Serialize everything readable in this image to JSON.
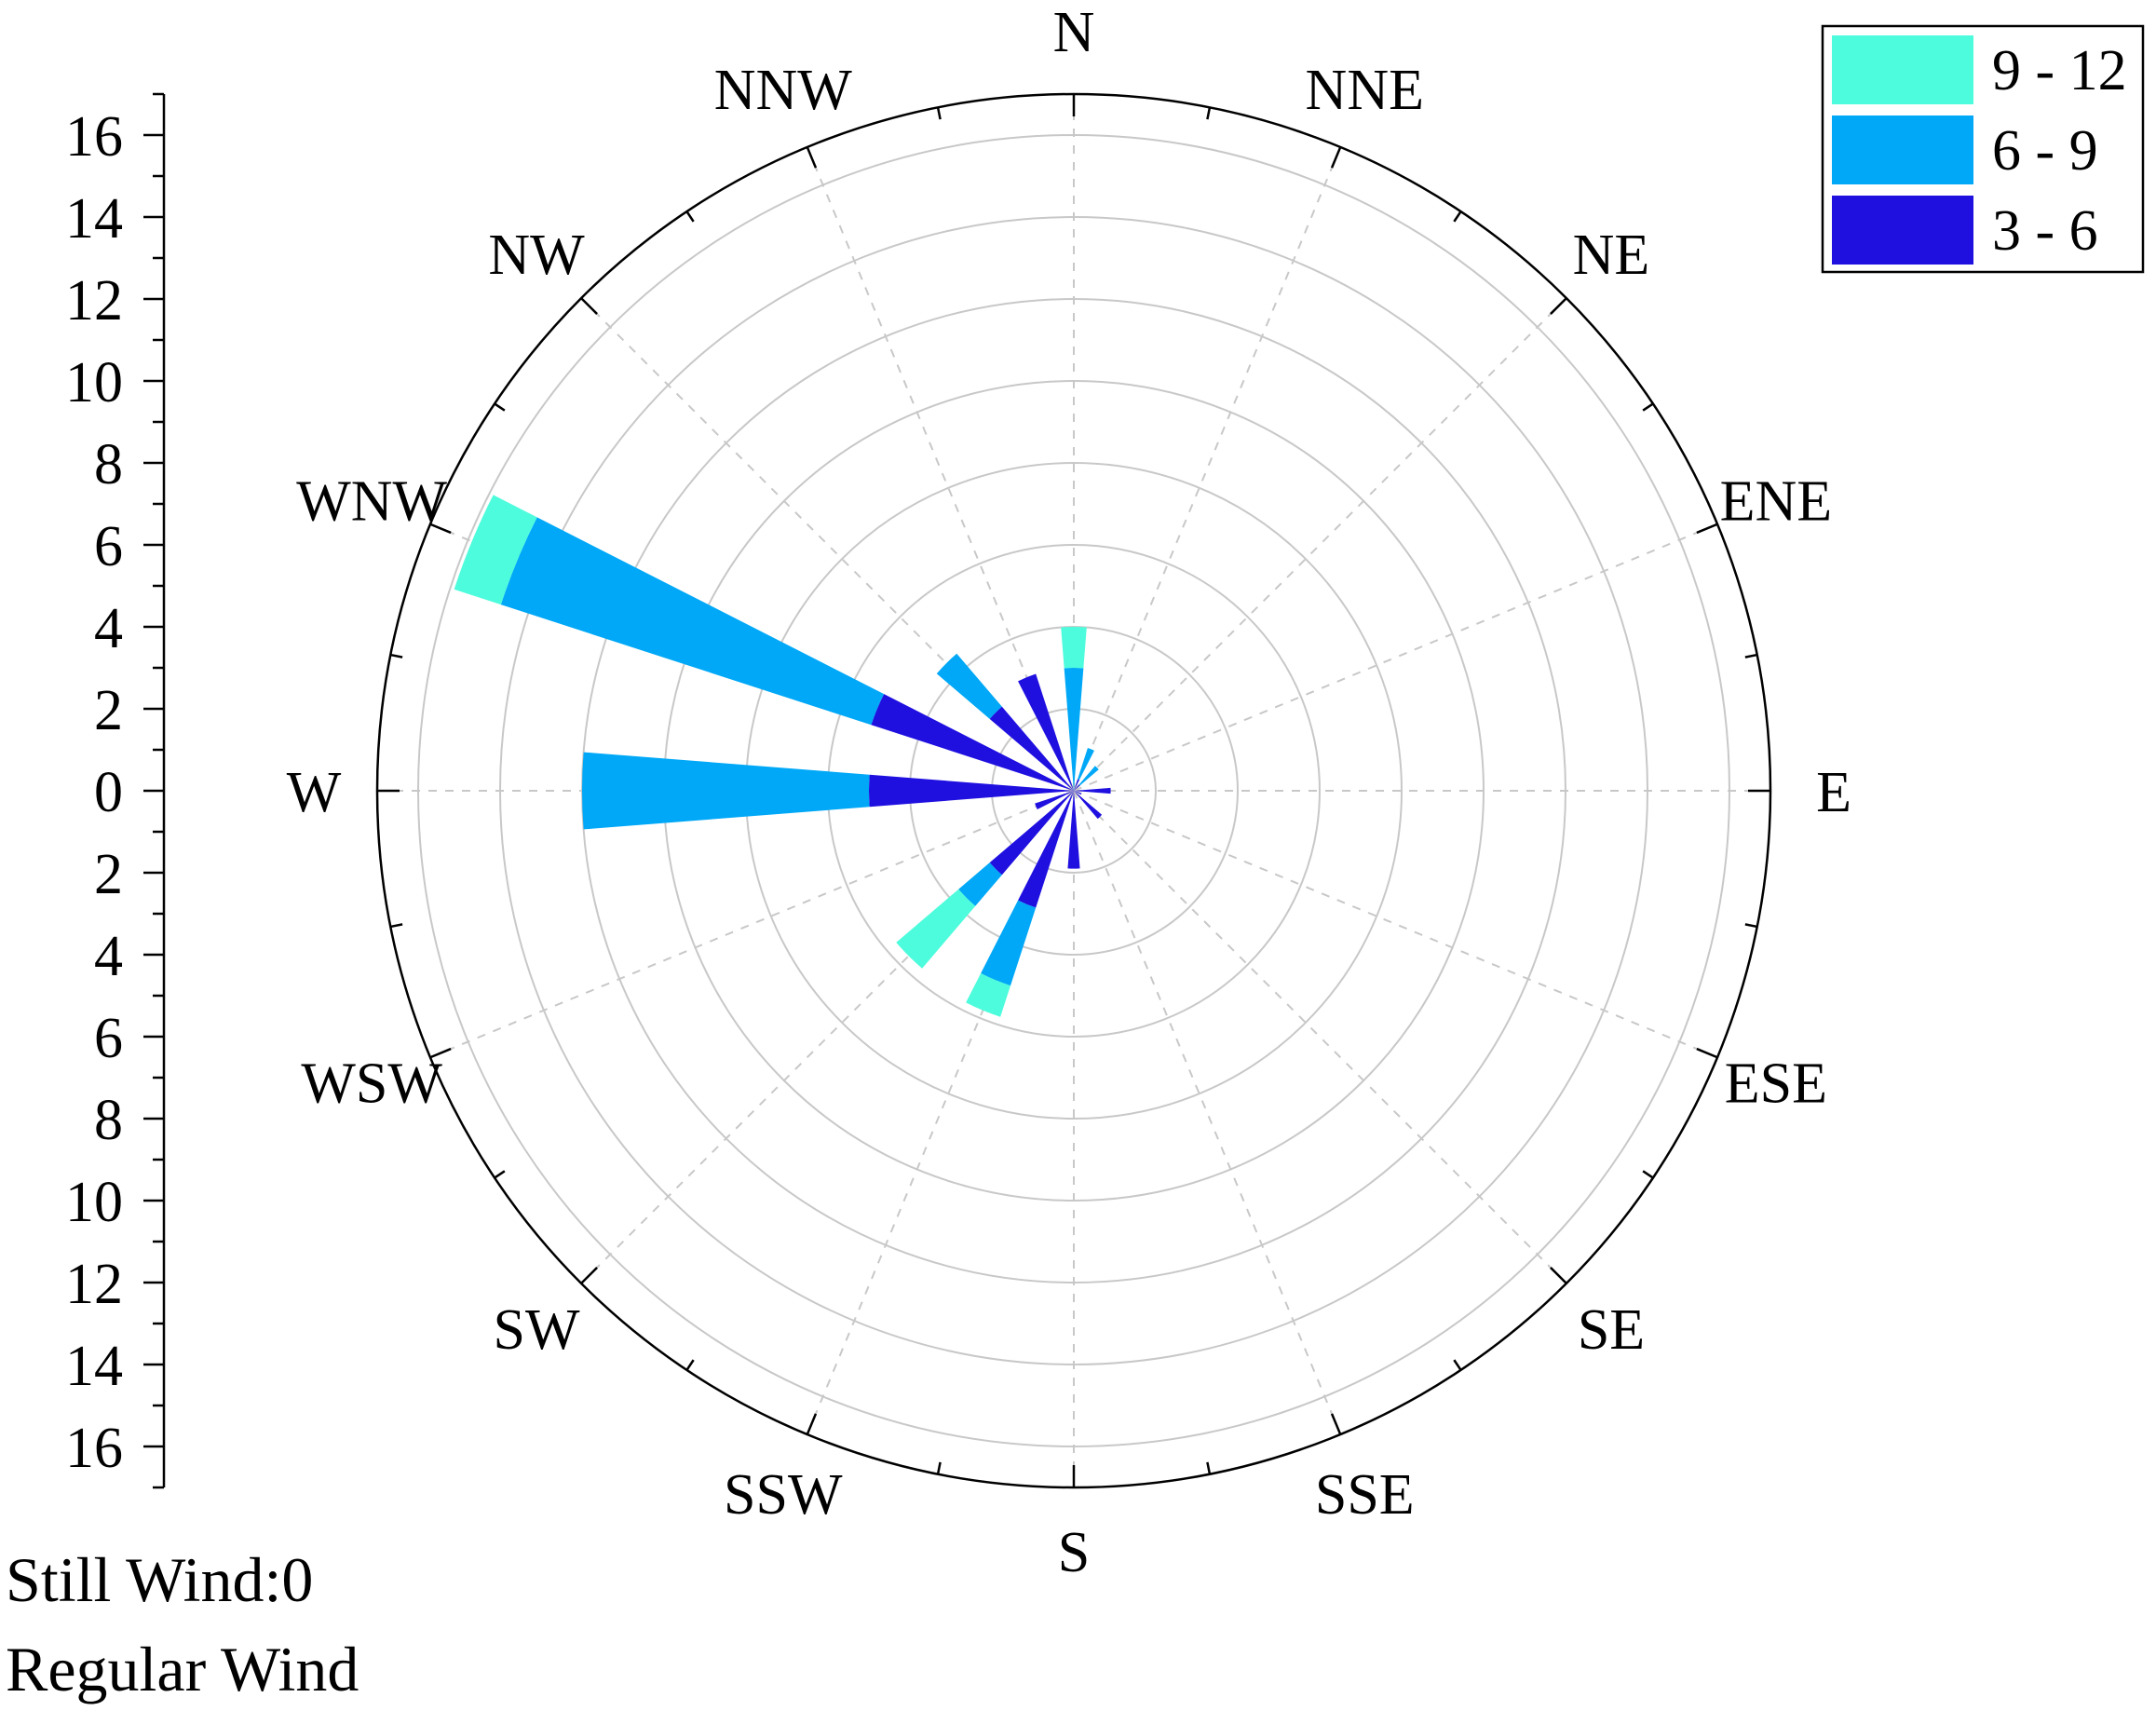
{
  "chart_data": {
    "type": "wind-rose",
    "directions": [
      "N",
      "NNE",
      "NE",
      "ENE",
      "E",
      "ESE",
      "SE",
      "SSE",
      "S",
      "SSW",
      "SW",
      "WSW",
      "W",
      "WNW",
      "NW",
      "NNW"
    ],
    "radial_axis": {
      "range": [
        0,
        17
      ],
      "ticks": [
        16,
        14,
        12,
        10,
        8,
        6,
        4,
        2,
        0,
        2,
        4,
        6,
        8,
        10,
        12,
        14,
        16
      ]
    },
    "grid": true,
    "legend": {
      "position": "top-right",
      "order": [
        "9 - 12",
        "6 - 9",
        "3 - 6"
      ]
    },
    "series": [
      {
        "name": "3 - 6",
        "color": "#1f10e0",
        "values": [
          0.0,
          0.3,
          0.2,
          0.0,
          0.9,
          0.2,
          0.9,
          0.0,
          1.9,
          3.0,
          2.7,
          1.0,
          5.0,
          5.2,
          2.7,
          3.0
        ]
      },
      {
        "name": "6 - 9",
        "color": "#00a8f7",
        "values": [
          3.0,
          0.8,
          0.6,
          0.0,
          0.0,
          0.0,
          0.0,
          0.0,
          0.0,
          2.0,
          1.0,
          0.0,
          7.0,
          9.5,
          1.7,
          0.0
        ]
      },
      {
        "name": "9 - 12",
        "color": "#4dfcdc",
        "values": [
          1.0,
          0.0,
          0.0,
          0.0,
          0.0,
          0.0,
          0.0,
          0.0,
          0.0,
          0.8,
          2.0,
          0.0,
          0.0,
          1.2,
          0.0,
          0.0
        ]
      }
    ]
  },
  "footer": {
    "still_wind": "Still Wind:0",
    "regular_wind": "Regular Wind"
  }
}
